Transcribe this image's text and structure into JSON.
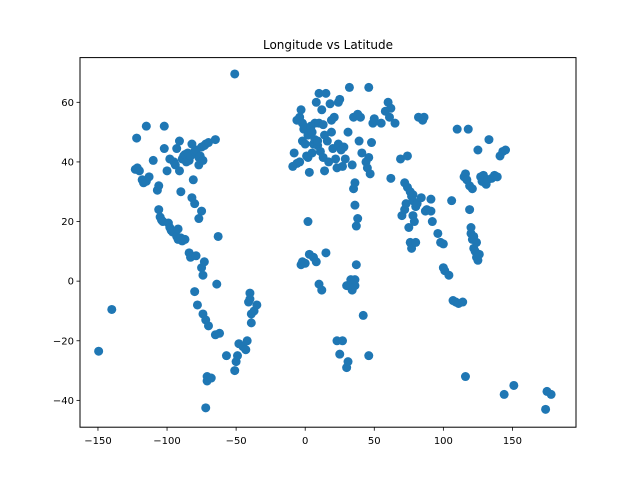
{
  "chart_data": {
    "type": "scatter",
    "title": "Longitude vs Latitude",
    "xlabel": "",
    "ylabel": "",
    "xlim": [
      -163,
      196
    ],
    "ylim": [
      -49,
      75
    ],
    "xticks": [
      -150,
      -100,
      -50,
      0,
      50,
      100,
      150
    ],
    "yticks": [
      -40,
      -20,
      0,
      20,
      40,
      60
    ],
    "marker_color": "#1f77b4",
    "grid": false,
    "series": [
      {
        "name": "",
        "points": [
          [
            -149.5,
            -23.5
          ],
          [
            -140,
            -9.5
          ],
          [
            -122,
            48
          ],
          [
            -123,
            37.5
          ],
          [
            -121.5,
            38
          ],
          [
            -120,
            37
          ],
          [
            -118,
            34
          ],
          [
            -117,
            33
          ],
          [
            -116.5,
            33.5
          ],
          [
            -115,
            52
          ],
          [
            -115,
            33.5
          ],
          [
            -113,
            35
          ],
          [
            -110,
            40.5
          ],
          [
            -107,
            30.5
          ],
          [
            -106,
            32
          ],
          [
            -106,
            24
          ],
          [
            -105,
            21.5
          ],
          [
            -104,
            20.5
          ],
          [
            -103,
            20
          ],
          [
            -102,
            52
          ],
          [
            -102,
            44.5
          ],
          [
            -100,
            37
          ],
          [
            -99,
            19.5
          ],
          [
            -98,
            18
          ],
          [
            -98,
            41
          ],
          [
            -97,
            17
          ],
          [
            -96,
            16.5
          ],
          [
            -95,
            40
          ],
          [
            -94,
            39
          ],
          [
            -93,
            44.5
          ],
          [
            -93,
            15
          ],
          [
            -92,
            17.5
          ],
          [
            -92,
            14
          ],
          [
            -91,
            47
          ],
          [
            -91,
            37
          ],
          [
            -90,
            14.5
          ],
          [
            -90,
            30
          ],
          [
            -89,
            13.5
          ],
          [
            -89,
            41
          ],
          [
            -88,
            42
          ],
          [
            -87,
            42.5
          ],
          [
            -87,
            14
          ],
          [
            -86,
            40
          ],
          [
            -85,
            43
          ],
          [
            -84,
            40.5
          ],
          [
            -84,
            9.5
          ],
          [
            -83,
            42
          ],
          [
            -83,
            8
          ],
          [
            -82,
            46
          ],
          [
            -82,
            28
          ],
          [
            -81,
            34
          ],
          [
            -80,
            43.5
          ],
          [
            -80,
            26
          ],
          [
            -80,
            -3.5
          ],
          [
            -79,
            44
          ],
          [
            -79,
            8.5
          ],
          [
            -78,
            -8
          ],
          [
            -77,
            39
          ],
          [
            -77,
            41.5
          ],
          [
            -77,
            21
          ],
          [
            -76,
            42
          ],
          [
            -75,
            4.5
          ],
          [
            -75,
            45
          ],
          [
            -75,
            23.5
          ],
          [
            -74,
            40.5
          ],
          [
            -74,
            2
          ],
          [
            -74,
            -11
          ],
          [
            -73,
            45.5
          ],
          [
            -73,
            6.5
          ],
          [
            -72,
            46
          ],
          [
            -72,
            -13
          ],
          [
            -72,
            -42.5
          ],
          [
            -71,
            -32
          ],
          [
            -71,
            -33.5
          ],
          [
            -70,
            46.5
          ],
          [
            -70,
            -15
          ],
          [
            -68,
            -32.5
          ],
          [
            -65,
            47.5
          ],
          [
            -65,
            -18
          ],
          [
            -64,
            -1
          ],
          [
            -63,
            15
          ],
          [
            -62,
            -17.5
          ],
          [
            -57,
            -25
          ],
          [
            -51,
            69.5
          ],
          [
            -51,
            -30
          ],
          [
            -50,
            -27
          ],
          [
            -49,
            -25
          ],
          [
            -48,
            -21
          ],
          [
            -45,
            -22
          ],
          [
            -43,
            -23
          ],
          [
            -42,
            -20
          ],
          [
            -41,
            -7
          ],
          [
            -40,
            -4
          ],
          [
            -40,
            -6
          ],
          [
            -39,
            -14
          ],
          [
            -39,
            -11
          ],
          [
            -37,
            -10
          ],
          [
            -35,
            -8
          ],
          [
            -9,
            38.5
          ],
          [
            -8,
            43
          ],
          [
            -6,
            54
          ],
          [
            -6,
            39.5
          ],
          [
            -4,
            55
          ],
          [
            -4,
            40
          ],
          [
            -3,
            57.5
          ],
          [
            -2,
            53
          ],
          [
            -2,
            47
          ],
          [
            -1,
            51
          ],
          [
            0,
            51.5
          ],
          [
            0,
            46
          ],
          [
            -3,
            5.5
          ],
          [
            -2,
            6.5
          ],
          [
            0,
            6
          ],
          [
            1,
            42
          ],
          [
            2,
            41.5
          ],
          [
            2,
            49
          ],
          [
            2,
            20
          ],
          [
            3,
            36.5
          ],
          [
            3,
            9
          ],
          [
            4,
            51
          ],
          [
            4,
            52
          ],
          [
            5,
            50
          ],
          [
            5,
            43
          ],
          [
            6,
            46
          ],
          [
            6,
            8
          ],
          [
            7,
            47.5
          ],
          [
            7,
            53
          ],
          [
            8,
            60
          ],
          [
            8,
            6.5
          ],
          [
            9,
            45.5
          ],
          [
            9,
            47
          ],
          [
            10,
            63
          ],
          [
            10,
            53
          ],
          [
            10,
            -1
          ],
          [
            11,
            43.5
          ],
          [
            12,
            57.5
          ],
          [
            12,
            -3
          ],
          [
            13,
            41.5
          ],
          [
            13,
            52.5
          ],
          [
            14,
            37
          ],
          [
            14,
            49
          ],
          [
            15,
            63
          ],
          [
            15,
            9.5
          ],
          [
            16,
            47
          ],
          [
            17,
            40
          ],
          [
            18,
            59.5
          ],
          [
            19,
            50
          ],
          [
            19,
            54
          ],
          [
            20,
            44.5
          ],
          [
            21,
            55
          ],
          [
            22,
            41
          ],
          [
            23,
            38
          ],
          [
            23,
            -20
          ],
          [
            24,
            60
          ],
          [
            24,
            46
          ],
          [
            25,
            61
          ],
          [
            25,
            -24.5
          ],
          [
            26,
            44
          ],
          [
            27,
            38.5
          ],
          [
            27,
            -20
          ],
          [
            28,
            45
          ],
          [
            29,
            41
          ],
          [
            30,
            -1.5
          ],
          [
            30,
            -29
          ],
          [
            31,
            50
          ],
          [
            31,
            -27
          ],
          [
            32,
            65
          ],
          [
            33,
            -2
          ],
          [
            33,
            0.5
          ],
          [
            34,
            39
          ],
          [
            34,
            -3
          ],
          [
            35,
            31
          ],
          [
            35,
            55
          ],
          [
            36,
            25.5
          ],
          [
            36,
            33
          ],
          [
            36,
            -1.5
          ],
          [
            36,
            0.5
          ],
          [
            37,
            5.5
          ],
          [
            37,
            18.5
          ],
          [
            38,
            56
          ],
          [
            38,
            21
          ],
          [
            39,
            47
          ],
          [
            40,
            55
          ],
          [
            41,
            43
          ],
          [
            42,
            -11.5
          ],
          [
            44,
            40
          ],
          [
            45,
            38
          ],
          [
            46,
            41.5
          ],
          [
            46,
            65
          ],
          [
            46,
            -25
          ],
          [
            47,
            36
          ],
          [
            48,
            46.5
          ],
          [
            49,
            53
          ],
          [
            50,
            54.5
          ],
          [
            55,
            53
          ],
          [
            58,
            57
          ],
          [
            60,
            60
          ],
          [
            61,
            55
          ],
          [
            62,
            58
          ],
          [
            62,
            34.5
          ],
          [
            65,
            53
          ],
          [
            69,
            41
          ],
          [
            70,
            22
          ],
          [
            72,
            33
          ],
          [
            72,
            24
          ],
          [
            73,
            26
          ],
          [
            74,
            42
          ],
          [
            74,
            31.5
          ],
          [
            75,
            18
          ],
          [
            76,
            30
          ],
          [
            76,
            13
          ],
          [
            77,
            28.5
          ],
          [
            77,
            11
          ],
          [
            78,
            29
          ],
          [
            78,
            27
          ],
          [
            78,
            22
          ],
          [
            79,
            20
          ],
          [
            80,
            13
          ],
          [
            80,
            25
          ],
          [
            81,
            26
          ],
          [
            82,
            55
          ],
          [
            84,
            28
          ],
          [
            85,
            54
          ],
          [
            86,
            55
          ],
          [
            87,
            23.5
          ],
          [
            88,
            24
          ],
          [
            91,
            27.5
          ],
          [
            91,
            23.5
          ],
          [
            92,
            20
          ],
          [
            96,
            16
          ],
          [
            98,
            13
          ],
          [
            100,
            4.5
          ],
          [
            100,
            12.5
          ],
          [
            101,
            3.5
          ],
          [
            104,
            2
          ],
          [
            106,
            27
          ],
          [
            107,
            -6.5
          ],
          [
            109,
            -7
          ],
          [
            110,
            51
          ],
          [
            111,
            -7.5
          ],
          [
            114,
            -7
          ],
          [
            115,
            35
          ],
          [
            116,
            36
          ],
          [
            116,
            -32
          ],
          [
            117,
            34
          ],
          [
            118,
            51
          ],
          [
            119,
            32
          ],
          [
            119,
            24
          ],
          [
            120,
            18
          ],
          [
            120,
            16
          ],
          [
            121,
            14
          ],
          [
            121,
            31
          ],
          [
            122,
            15
          ],
          [
            122,
            11
          ],
          [
            123,
            10
          ],
          [
            124,
            13
          ],
          [
            124,
            8
          ],
          [
            125,
            7
          ],
          [
            125,
            44
          ],
          [
            126,
            9
          ],
          [
            127,
            35
          ],
          [
            128,
            33.5
          ],
          [
            129,
            35.5
          ],
          [
            130,
            33
          ],
          [
            131,
            32.5
          ],
          [
            132,
            34
          ],
          [
            133,
            47.5
          ],
          [
            135,
            34.5
          ],
          [
            137,
            35.5
          ],
          [
            139,
            35
          ],
          [
            141,
            42
          ],
          [
            143,
            43.5
          ],
          [
            144,
            -38
          ],
          [
            145,
            44
          ],
          [
            151,
            -35
          ],
          [
            174,
            -43
          ],
          [
            175,
            -37
          ],
          [
            178,
            -38
          ]
        ]
      }
    ]
  }
}
